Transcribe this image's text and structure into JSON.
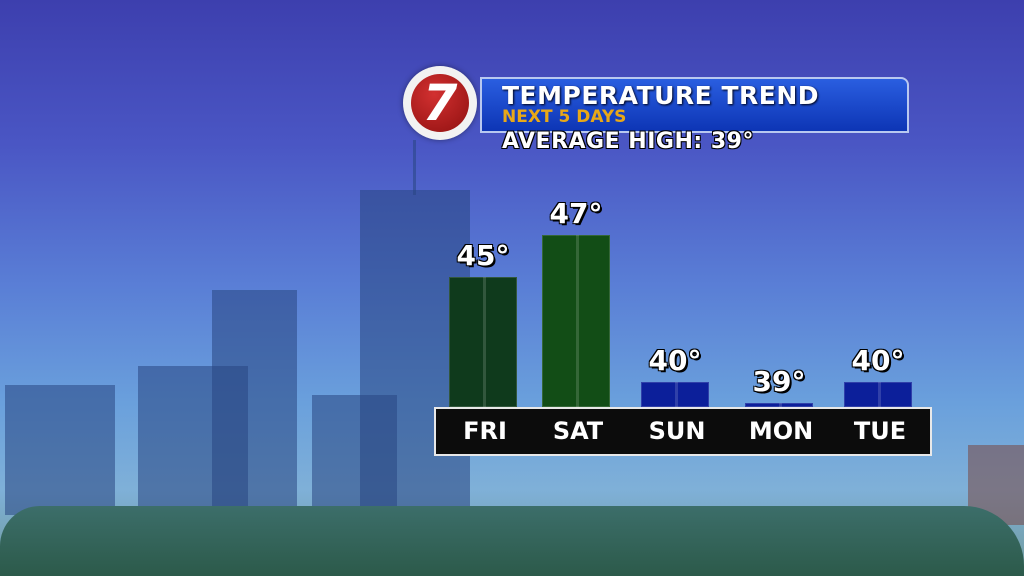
{
  "header": {
    "logo_text": "7",
    "title": "TEMPERATURE TREND",
    "subtitle": "NEXT 5 DAYS",
    "average_high": "AVERAGE HIGH:  39°"
  },
  "chart_data": {
    "type": "bar",
    "categories": [
      "FRI",
      "SAT",
      "SUN",
      "MON",
      "TUE"
    ],
    "values": [
      45,
      47,
      40,
      39,
      40
    ],
    "value_labels": [
      "45°",
      "47°",
      "40°",
      "39°",
      "40°"
    ],
    "colors": [
      "#0f3a1c",
      "#124d16",
      "#0c1f9a",
      "#0c1f9a",
      "#0c1f9a"
    ],
    "title": "TEMPERATURE TREND",
    "subtitle": "NEXT 5 DAYS",
    "grid": false
  }
}
